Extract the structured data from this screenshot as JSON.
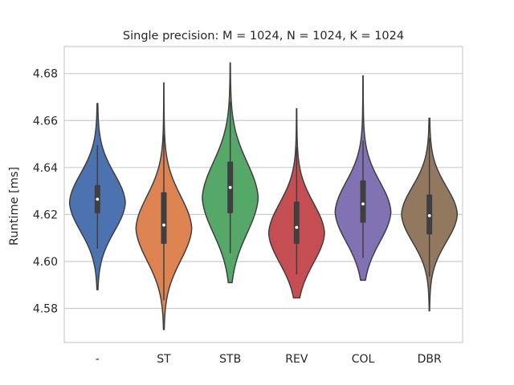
{
  "chart_data": {
    "type": "violin",
    "title": "Single precision: M = 1024, N = 1024, K = 1024",
    "xlabel": "",
    "ylabel": "Runtime [ms]",
    "ylim": [
      4.5655,
      4.6915
    ],
    "yticks": [
      4.58,
      4.6,
      4.62,
      4.64,
      4.66,
      4.68
    ],
    "ytick_labels": [
      "4.58",
      "4.60",
      "4.62",
      "4.64",
      "4.66",
      "4.68"
    ],
    "grid": true,
    "categories": [
      "-",
      "ST",
      "STB",
      "REV",
      "COL",
      "DBR"
    ],
    "violins": [
      {
        "name": "-",
        "color": "#4c72b0",
        "min": 4.588,
        "q1": 4.6205,
        "median": 4.6265,
        "q3": 4.6325,
        "max": 4.6672,
        "whisker_low": 4.6055,
        "whisker_high": 4.6495,
        "mode": 4.625,
        "spread": 0.0125
      },
      {
        "name": "ST",
        "color": "#dd8452",
        "min": 4.571,
        "q1": 4.6075,
        "median": 4.6155,
        "q3": 4.6295,
        "max": 4.676,
        "whisker_low": 4.5835,
        "whisker_high": 4.654,
        "mode": 4.614,
        "spread": 0.014
      },
      {
        "name": "STB",
        "color": "#55a868",
        "min": 4.591,
        "q1": 4.6205,
        "median": 4.6315,
        "q3": 4.6425,
        "max": 4.6845,
        "whisker_low": 4.6035,
        "whisker_high": 4.668,
        "mode": 4.627,
        "spread": 0.0155
      },
      {
        "name": "REV",
        "color": "#c44e52",
        "min": 4.5845,
        "q1": 4.6075,
        "median": 4.6145,
        "q3": 4.6255,
        "max": 4.665,
        "whisker_low": 4.5945,
        "whisker_high": 4.6485,
        "mode": 4.612,
        "spread": 0.013
      },
      {
        "name": "COL",
        "color": "#8172b3",
        "min": 4.592,
        "q1": 4.6165,
        "median": 4.6245,
        "q3": 4.6345,
        "max": 4.679,
        "whisker_low": 4.6015,
        "whisker_high": 4.6515,
        "mode": 4.621,
        "spread": 0.013
      },
      {
        "name": "DBR",
        "color": "#937860",
        "min": 4.579,
        "q1": 4.6115,
        "median": 4.6195,
        "q3": 4.6285,
        "max": 4.661,
        "whisker_low": 4.5935,
        "whisker_high": 4.6525,
        "mode": 4.62,
        "spread": 0.012
      }
    ]
  }
}
